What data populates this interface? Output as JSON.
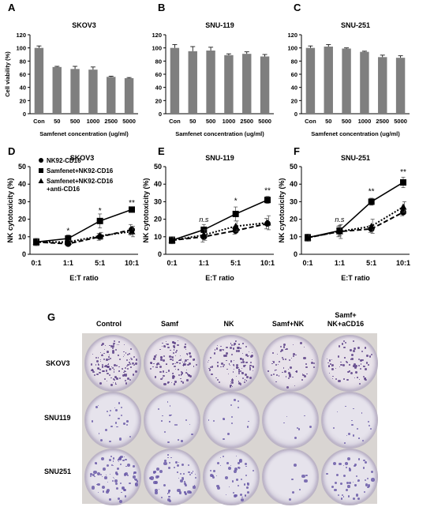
{
  "panels": {
    "A": "A",
    "B": "B",
    "C": "C",
    "D": "D",
    "E": "E",
    "F": "F",
    "G": "G"
  },
  "chart_data": [
    {
      "type": "bar",
      "title": "SKOV3",
      "xlabel": "Samfenet concentration (ug/ml)",
      "ylabel": "Cell viability (%)",
      "categories": [
        "Con",
        "50",
        "500",
        "1000",
        "2500",
        "5000"
      ],
      "values": [
        100,
        71,
        68,
        67,
        56,
        54
      ],
      "errors": [
        3,
        1,
        4,
        4,
        1,
        1
      ],
      "ylim": [
        0,
        120
      ],
      "yticks": [
        0,
        20,
        40,
        60,
        80,
        100,
        120
      ]
    },
    {
      "type": "bar",
      "title": "SNU-119",
      "xlabel": "Samfenet concentration (ug/ml)",
      "ylabel": "",
      "categories": [
        "Con",
        "50",
        "500",
        "1000",
        "2500",
        "5000"
      ],
      "values": [
        100,
        95,
        96,
        89,
        91,
        87
      ],
      "errors": [
        5,
        7,
        5,
        2,
        3,
        3
      ],
      "ylim": [
        0,
        120
      ],
      "yticks": [
        0,
        20,
        40,
        60,
        80,
        100,
        120
      ]
    },
    {
      "type": "bar",
      "title": "SNU-251",
      "xlabel": "Samfenet concentration (ug/ml)",
      "ylabel": "",
      "categories": [
        "Con",
        "50",
        "500",
        "1000",
        "2500",
        "5000"
      ],
      "values": [
        100,
        102,
        99,
        94,
        86,
        85
      ],
      "errors": [
        3,
        3,
        1,
        1,
        3,
        3
      ],
      "ylim": [
        0,
        120
      ],
      "yticks": [
        0,
        20,
        40,
        60,
        80,
        100,
        120
      ]
    },
    {
      "type": "line",
      "title": "SKOV3",
      "xlabel": "E:T ratio",
      "ylabel": "NK cytotoxicity (%)",
      "categories": [
        "0:1",
        "1:1",
        "5:1",
        "10:1"
      ],
      "ylim": [
        0,
        50
      ],
      "yticks": [
        0,
        10,
        20,
        30,
        40,
        50
      ],
      "legend": [
        "NK92-CD16",
        "Samfenet+NK92-CD16",
        "Samfenet+NK92-CD16",
        "+anti-CD16"
      ],
      "series": [
        {
          "name": "NK92-CD16",
          "marker": "circle",
          "dash": "dashed",
          "values": [
            7,
            6,
            10,
            14
          ],
          "errors": [
            2,
            1,
            2,
            3
          ]
        },
        {
          "name": "Samfenet+NK92-CD16",
          "marker": "square",
          "dash": "solid",
          "values": [
            7,
            9,
            19,
            25.5
          ],
          "errors": [
            2,
            2,
            4,
            1
          ]
        },
        {
          "name": "Samfenet+NK92-CD16 +anti-CD16",
          "marker": "triangle",
          "dash": "dotted",
          "values": [
            7,
            7,
            10.5,
            13
          ],
          "errors": [
            2,
            1,
            2,
            3
          ]
        }
      ],
      "annotations": [
        {
          "x": "1:1",
          "y": 12,
          "text": "*"
        },
        {
          "x": "5:1",
          "y": 23.5,
          "text": "*"
        },
        {
          "x": "10:1",
          "y": 28,
          "text": "**"
        }
      ]
    },
    {
      "type": "line",
      "title": "SNU-119",
      "xlabel": "E:T ratio",
      "ylabel": "NK cytotoxicity (%)",
      "categories": [
        "0:1",
        "1:1",
        "5:1",
        "10:1"
      ],
      "ylim": [
        0,
        50
      ],
      "yticks": [
        0,
        10,
        20,
        30,
        40,
        50
      ],
      "series": [
        {
          "name": "NK92-CD16",
          "marker": "circle",
          "dash": "dashed",
          "values": [
            8,
            10,
            13.5,
            17.5
          ],
          "errors": [
            2,
            3,
            2,
            3
          ]
        },
        {
          "name": "Samfenet+NK92-CD16",
          "marker": "square",
          "dash": "solid",
          "values": [
            8,
            14,
            23,
            31
          ],
          "errors": [
            2,
            3,
            4,
            2
          ]
        },
        {
          "name": "Samfenet+NK92-CD16 +anti-CD16",
          "marker": "triangle",
          "dash": "dotted",
          "values": [
            8,
            11,
            16,
            18
          ],
          "errors": [
            2,
            3,
            3,
            4
          ]
        }
      ],
      "annotations": [
        {
          "x": "1:1",
          "y": 18.5,
          "text": "n.s",
          "italic": true
        },
        {
          "x": "5:1",
          "y": 29,
          "text": "*"
        },
        {
          "x": "10:1",
          "y": 35,
          "text": "**"
        }
      ]
    },
    {
      "type": "line",
      "title": "SNU-251",
      "xlabel": "E:T ratio",
      "ylabel": "NK cytotoxicity (%)",
      "categories": [
        "0:1",
        "1:1",
        "5:1",
        "10:1"
      ],
      "ylim": [
        0,
        50
      ],
      "yticks": [
        0,
        10,
        20,
        30,
        40,
        50
      ],
      "series": [
        {
          "name": "NK92-CD16",
          "marker": "circle",
          "dash": "dashed",
          "values": [
            9.5,
            13,
            14.5,
            24
          ],
          "errors": [
            2,
            3,
            2,
            2
          ]
        },
        {
          "name": "Samfenet+NK92-CD16",
          "marker": "square",
          "dash": "solid",
          "values": [
            9.5,
            13.5,
            30,
            41
          ],
          "errors": [
            2,
            3,
            2,
            3
          ]
        },
        {
          "name": "Samfenet+NK92-CD16 +anti-CD16",
          "marker": "triangle",
          "dash": "dotted",
          "values": [
            9.5,
            13,
            16,
            27
          ],
          "errors": [
            2,
            4,
            4,
            3
          ]
        }
      ],
      "annotations": [
        {
          "x": "1:1",
          "y": 18.5,
          "text": "n.s",
          "italic": true
        },
        {
          "x": "5:1",
          "y": 34.5,
          "text": "**"
        },
        {
          "x": "10:1",
          "y": 45.5,
          "text": "**"
        }
      ]
    }
  ],
  "plates": {
    "columns": [
      "Control",
      "Samf",
      "NK",
      "Samf+NK",
      "Samf+",
      "NK+aCD16"
    ],
    "rows": [
      "SKOV3",
      "SNU119",
      "SNU251"
    ]
  }
}
